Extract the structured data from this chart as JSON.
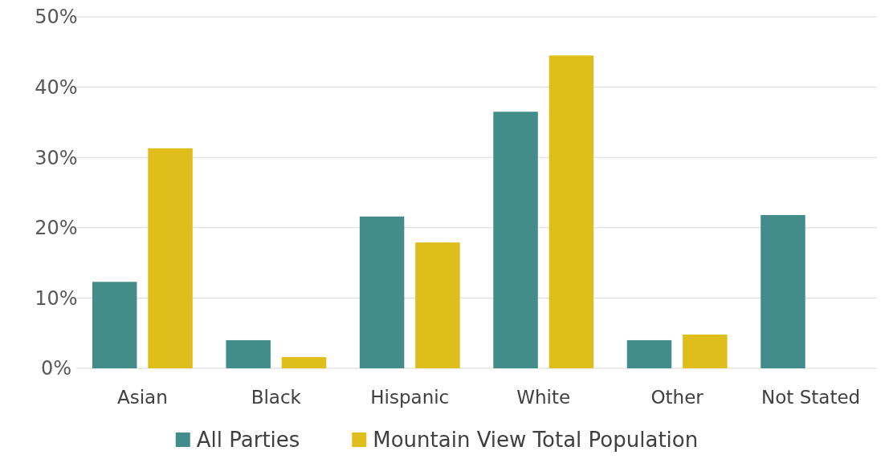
{
  "chart_data": {
    "type": "bar",
    "categories": [
      "Asian",
      "Black",
      "Hispanic",
      "White",
      "Other",
      "Not Stated"
    ],
    "series": [
      {
        "name": "All Parties",
        "color": "#428d89",
        "values": [
          12.3,
          4.0,
          21.6,
          36.5,
          4.0,
          21.8
        ]
      },
      {
        "name": "Mountain View Total Population",
        "color": "#dfbd1a",
        "values": [
          31.3,
          1.6,
          17.9,
          44.5,
          4.8,
          null
        ]
      }
    ],
    "ylim": [
      0,
      50
    ],
    "yticks": [
      {
        "value": 0,
        "label": "0%"
      },
      {
        "value": 10,
        "label": "10%"
      },
      {
        "value": 20,
        "label": "20%"
      },
      {
        "value": 30,
        "label": "30%"
      },
      {
        "value": 40,
        "label": "40%"
      },
      {
        "value": 50,
        "label": "50%"
      }
    ],
    "grid": "y",
    "legend": "bottom"
  }
}
